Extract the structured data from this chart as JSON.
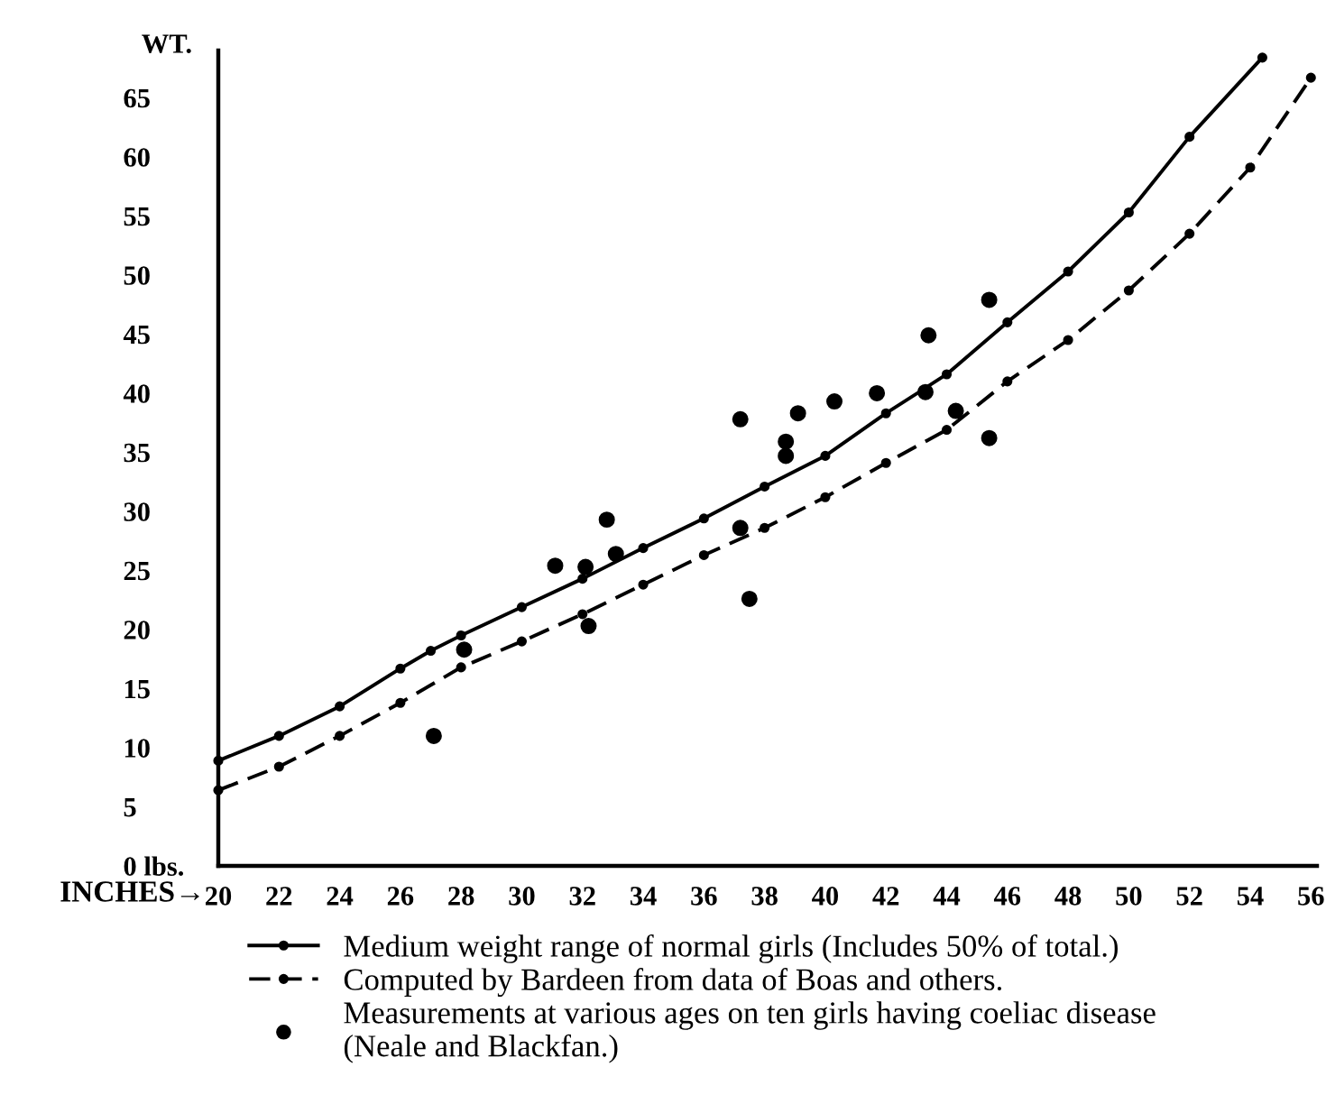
{
  "chart_data": {
    "type": "line",
    "xlabel": "INCHES→",
    "ylabel": "WT.",
    "xlim": [
      20,
      56.2
    ],
    "ylim": [
      0,
      69
    ],
    "xticks": [
      20,
      22,
      24,
      26,
      28,
      30,
      32,
      34,
      36,
      38,
      40,
      42,
      44,
      46,
      48,
      50,
      52,
      54,
      56
    ],
    "yticks": [
      {
        "value": 0,
        "label": "0 lbs."
      },
      5,
      10,
      15,
      20,
      25,
      30,
      35,
      40,
      45,
      50,
      55,
      60,
      65
    ],
    "grid": false,
    "legend": "bottom",
    "series": [
      {
        "name": "Medium weight range of normal girls (Includes 50% of total.)",
        "color": "#000000",
        "marker": "circle",
        "line_style": "solid",
        "x": [
          20,
          22,
          24,
          26,
          27,
          28,
          30,
          32,
          34,
          36,
          38,
          40,
          42,
          44,
          46,
          48,
          50,
          52,
          54.4
        ],
        "values": [
          8.9,
          11.0,
          13.5,
          16.7,
          18.2,
          19.5,
          21.9,
          24.3,
          26.9,
          29.4,
          32.1,
          34.7,
          38.3,
          41.6,
          46.0,
          50.3,
          55.3,
          61.7,
          68.4
        ]
      },
      {
        "name": "Computed by Bardeen from data of Boas and others.",
        "color": "#000000",
        "marker": "circle",
        "line_style": "dashed",
        "x": [
          20,
          22,
          24,
          26,
          28,
          30,
          32,
          34,
          36,
          38,
          40,
          42,
          44,
          46,
          48,
          50,
          52,
          54,
          56
        ],
        "values": [
          6.4,
          8.4,
          11.0,
          13.8,
          16.8,
          19.0,
          21.3,
          23.8,
          26.3,
          28.6,
          31.2,
          34.1,
          36.9,
          41.0,
          44.5,
          48.7,
          53.5,
          59.1,
          66.7
        ]
      },
      {
        "name": "Measurements at various ages on ten girls having coeliac disease\n(Neale and Blackfan.)",
        "type": "scatter",
        "color": "#000000",
        "marker": "circle",
        "x": [
          27.1,
          28.1,
          31.1,
          32.1,
          32.2,
          33.1,
          32.8,
          37.2,
          37.5,
          37.2,
          38.7,
          38.7,
          39.1,
          40.3,
          41.7,
          43.3,
          43.4,
          44.3,
          45.4,
          45.4
        ],
        "values": [
          11.0,
          18.3,
          25.4,
          25.3,
          20.3,
          26.4,
          29.3,
          28.6,
          22.6,
          37.8,
          35.9,
          34.7,
          38.3,
          39.3,
          40.0,
          40.1,
          44.9,
          38.5,
          47.9,
          36.2
        ]
      }
    ]
  }
}
